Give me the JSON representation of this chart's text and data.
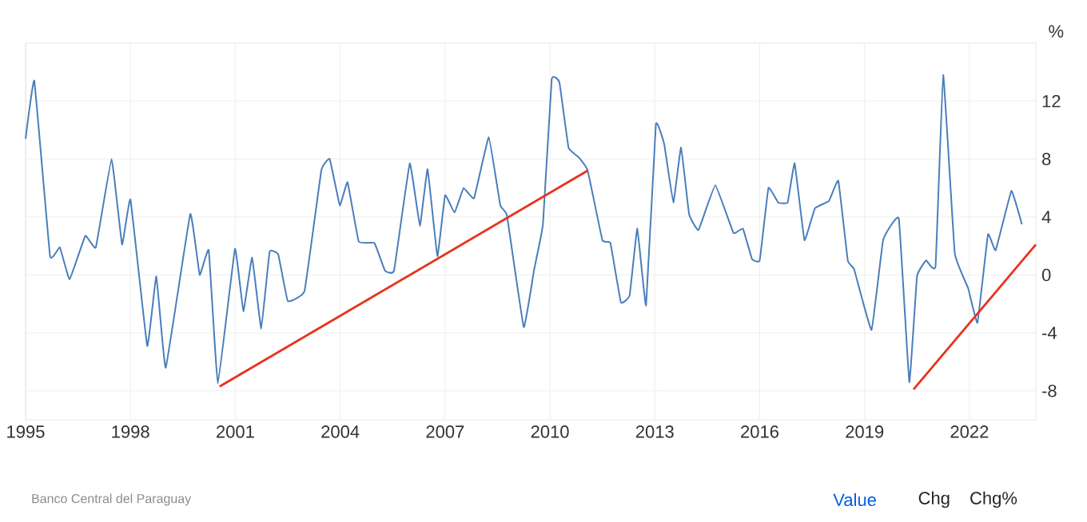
{
  "chart_data": {
    "type": "line",
    "ylabel": "%",
    "x": [
      1995.0,
      1995.25,
      1995.7,
      1995.98,
      1996.26,
      1996.71,
      1997.01,
      1997.46,
      1997.76,
      1998.0,
      1998.48,
      1998.74,
      1999.01,
      1999.71,
      1999.98,
      2000.24,
      2000.5,
      2000.99,
      2001.23,
      2001.48,
      2001.74,
      2001.98,
      2002.23,
      2002.5,
      2002.98,
      2003.46,
      2003.7,
      2003.99,
      2004.21,
      2004.53,
      2004.98,
      2005.28,
      2005.54,
      2005.99,
      2006.28,
      2006.5,
      2006.78,
      2007.0,
      2007.27,
      2007.53,
      2007.83,
      2008.25,
      2008.58,
      2008.77,
      2009.25,
      2009.55,
      2009.8,
      2010.05,
      2010.27,
      2010.53,
      2010.83,
      2011.08,
      2011.5,
      2011.73,
      2012.03,
      2012.28,
      2012.5,
      2012.75,
      2013.03,
      2013.27,
      2013.53,
      2013.75,
      2013.98,
      2014.25,
      2014.73,
      2015.25,
      2015.52,
      2015.78,
      2016.0,
      2016.25,
      2016.53,
      2016.8,
      2017.0,
      2017.28,
      2017.58,
      2017.98,
      2018.25,
      2018.52,
      2018.7,
      2019.2,
      2019.53,
      2019.98,
      2020.28,
      2020.5,
      2020.76,
      2021.03,
      2021.25,
      2021.58,
      2021.96,
      2022.23,
      2022.53,
      2022.75,
      2023.2,
      2023.5
    ],
    "series": [
      {
        "color": "#4a7ebb",
        "values": [
          9.4,
          13.4,
          1.3,
          1.9,
          -0.3,
          2.7,
          1.9,
          8.0,
          2.1,
          5.2,
          -4.9,
          -0.1,
          -6.4,
          4.2,
          0.0,
          1.7,
          -7.5,
          1.8,
          -2.5,
          1.2,
          -3.7,
          1.6,
          1.4,
          -1.8,
          -1.1,
          7.2,
          8.0,
          4.8,
          6.4,
          2.3,
          2.2,
          0.3,
          0.3,
          7.7,
          3.4,
          7.3,
          1.3,
          5.5,
          4.3,
          6.0,
          5.3,
          9.5,
          4.8,
          4.1,
          -3.6,
          0.4,
          3.5,
          13.5,
          13.3,
          8.8,
          8.1,
          7.2,
          2.4,
          2.2,
          -1.9,
          -1.4,
          3.2,
          -2.1,
          10.4,
          9.0,
          5.0,
          8.8,
          4.2,
          3.1,
          6.2,
          2.9,
          3.2,
          1.1,
          1.0,
          6.0,
          5.0,
          5.0,
          7.7,
          2.4,
          4.6,
          5.1,
          6.5,
          1.0,
          0.4,
          -3.8,
          2.4,
          3.9,
          -7.4,
          -0.1,
          1.0,
          0.6,
          13.8,
          1.5,
          -0.9,
          -3.3,
          2.8,
          1.7,
          5.8,
          3.5
        ]
      },
      {
        "type": "line",
        "color": "#e8321e",
        "x": [
          2000.55,
          2011.08
        ],
        "values": [
          -7.7,
          7.2
        ]
      },
      {
        "type": "line",
        "color": "#e8321e",
        "x": [
          2020.4,
          2023.9
        ],
        "values": [
          -7.9,
          2.1
        ]
      }
    ],
    "xlim": [
      1995,
      2023.9
    ],
    "xticks": [
      1995,
      1998,
      2001,
      2004,
      2007,
      2010,
      2013,
      2016,
      2019,
      2022
    ],
    "ylim": [
      -10,
      16
    ],
    "yticks": [
      -8,
      -4,
      0,
      4,
      8,
      12
    ],
    "grid": true,
    "annotations": [
      "Banco Central del Paraguay",
      "Value",
      "Chg",
      "Chg%"
    ]
  }
}
